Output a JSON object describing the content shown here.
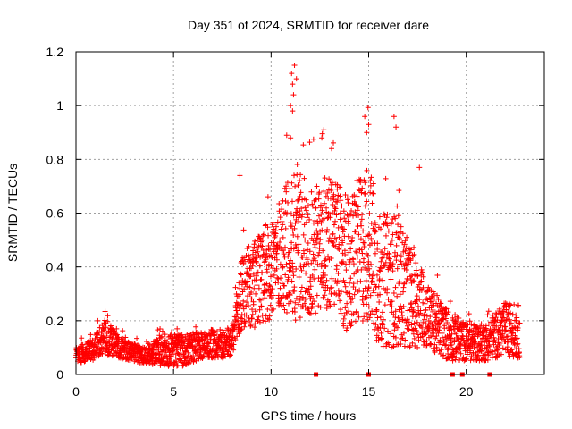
{
  "chart_data": {
    "type": "scatter",
    "title": "Day 351 of 2024, SRMTID for receiver dare",
    "xlabel": "GPS time / hours",
    "ylabel": "SRMTID / TECUs",
    "xlim": [
      0,
      24
    ],
    "ylim": [
      0,
      1.2
    ],
    "xticks": [
      0,
      5,
      10,
      15,
      20
    ],
    "xtick_labels": [
      "0",
      "5",
      "10",
      "15",
      "20"
    ],
    "yticks": [
      0,
      0.2,
      0.4,
      0.6,
      0.8,
      1.0,
      1.2
    ],
    "ytick_labels": [
      "0",
      "0.2",
      "0.4",
      "0.6",
      "0.8",
      "1",
      "1.2"
    ],
    "grid": true,
    "marker": "+",
    "color": "#ff0000",
    "series": [
      {
        "name": "SRMTID",
        "envelope": [
          {
            "t": 0.0,
            "base": 0.07,
            "spread": 0.03
          },
          {
            "t": 0.8,
            "base": 0.09,
            "spread": 0.04
          },
          {
            "t": 1.5,
            "base": 0.14,
            "spread": 0.07
          },
          {
            "t": 2.2,
            "base": 0.1,
            "spread": 0.04
          },
          {
            "t": 3.5,
            "base": 0.07,
            "spread": 0.03
          },
          {
            "t": 4.5,
            "base": 0.09,
            "spread": 0.06
          },
          {
            "t": 5.5,
            "base": 0.09,
            "spread": 0.06
          },
          {
            "t": 6.5,
            "base": 0.11,
            "spread": 0.05
          },
          {
            "t": 8.0,
            "base": 0.12,
            "spread": 0.06
          },
          {
            "t": 8.5,
            "base": 0.3,
            "spread": 0.15
          },
          {
            "t": 9.5,
            "base": 0.35,
            "spread": 0.18
          },
          {
            "t": 10.5,
            "base": 0.45,
            "spread": 0.2
          },
          {
            "t": 11.2,
            "base": 0.5,
            "spread": 0.3
          },
          {
            "t": 12.0,
            "base": 0.45,
            "spread": 0.25
          },
          {
            "t": 13.0,
            "base": 0.5,
            "spread": 0.25
          },
          {
            "t": 14.0,
            "base": 0.4,
            "spread": 0.25
          },
          {
            "t": 15.0,
            "base": 0.5,
            "spread": 0.3
          },
          {
            "t": 15.5,
            "base": 0.35,
            "spread": 0.25
          },
          {
            "t": 16.5,
            "base": 0.35,
            "spread": 0.25
          },
          {
            "t": 17.0,
            "base": 0.3,
            "spread": 0.2
          },
          {
            "t": 18.0,
            "base": 0.22,
            "spread": 0.12
          },
          {
            "t": 19.0,
            "base": 0.15,
            "spread": 0.1
          },
          {
            "t": 20.0,
            "base": 0.12,
            "spread": 0.07
          },
          {
            "t": 21.0,
            "base": 0.12,
            "spread": 0.07
          },
          {
            "t": 22.0,
            "base": 0.17,
            "spread": 0.1
          },
          {
            "t": 22.7,
            "base": 0.16,
            "spread": 0.1
          }
        ],
        "samples_per_hour": 120,
        "t_end": 22.75,
        "peaks": [
          {
            "x": 11.2,
            "y": 1.15
          },
          {
            "x": 11.05,
            "y": 1.12
          },
          {
            "x": 11.1,
            "y": 1.08
          },
          {
            "x": 11.15,
            "y": 1.04
          },
          {
            "x": 11.3,
            "y": 1.1
          },
          {
            "x": 11.0,
            "y": 1.0
          },
          {
            "x": 11.1,
            "y": 0.98
          },
          {
            "x": 12.7,
            "y": 0.91
          },
          {
            "x": 12.6,
            "y": 0.88
          },
          {
            "x": 14.8,
            "y": 0.96
          },
          {
            "x": 15.0,
            "y": 0.93
          },
          {
            "x": 16.3,
            "y": 0.96
          },
          {
            "x": 16.4,
            "y": 0.92
          },
          {
            "x": 14.9,
            "y": 0.9
          },
          {
            "x": 13.1,
            "y": 0.84
          },
          {
            "x": 17.6,
            "y": 0.77
          },
          {
            "x": 8.4,
            "y": 0.74
          },
          {
            "x": 10.8,
            "y": 0.89
          },
          {
            "x": 11.0,
            "y": 0.88
          }
        ]
      }
    ],
    "markers_on_axis": [
      12.3,
      15.0,
      19.3,
      19.8,
      21.2
    ]
  }
}
